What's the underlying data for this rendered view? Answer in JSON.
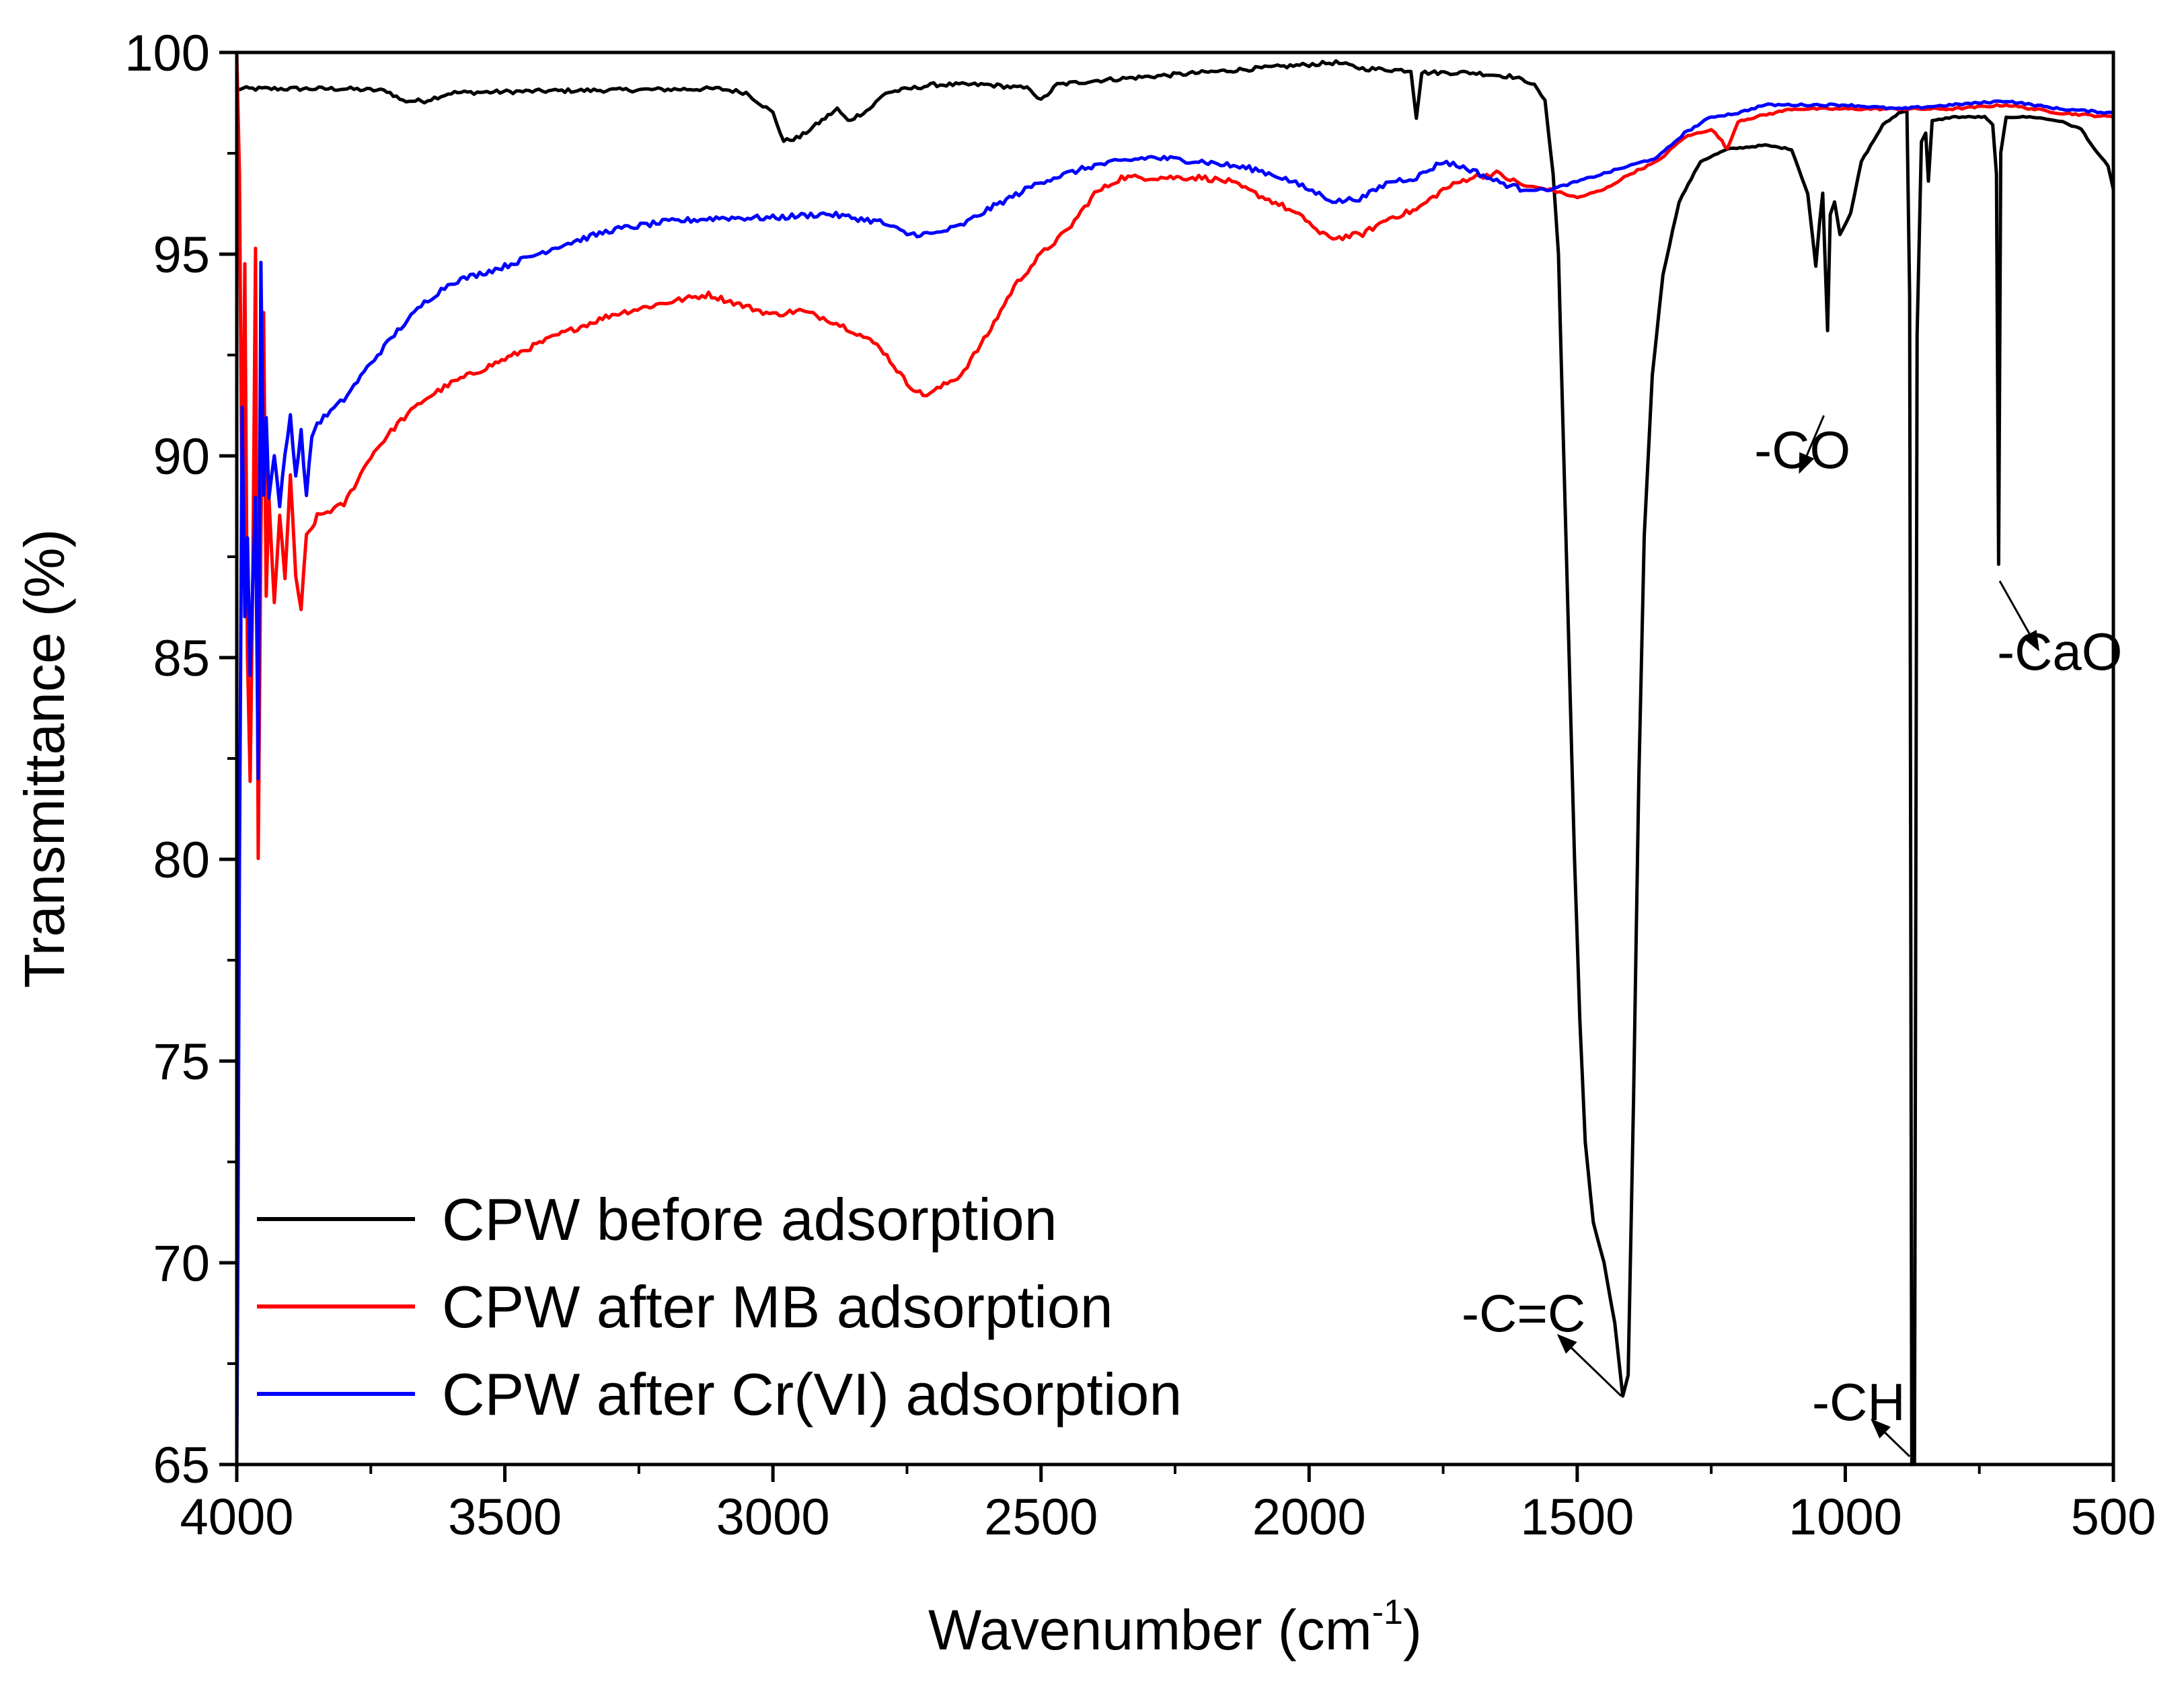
{
  "chart_data": {
    "type": "line",
    "title": "",
    "xlabel": "Wavenumber (cm",
    "xlabel_sup": "-1",
    "xlabel_suffix": ")",
    "ylabel": "Transmittance (%)",
    "xlim": [
      4000,
      500
    ],
    "ylim": [
      65,
      100
    ],
    "x_ticks": [
      4000,
      3500,
      3000,
      2500,
      2000,
      1500,
      1000,
      500
    ],
    "x_tick_labels": [
      "4000",
      "3500",
      "3000",
      "2500",
      "2000",
      "1500",
      "1000",
      "500"
    ],
    "y_ticks": [
      65,
      70,
      75,
      80,
      85,
      90,
      95,
      100
    ],
    "y_tick_labels": [
      "65",
      "70",
      "75",
      "80",
      "85",
      "90",
      "95",
      "100"
    ],
    "grid": false,
    "legend_position": "bottom-left",
    "series": [
      {
        "name": "CPW before adsorption",
        "color": "#000000",
        "points": [
          [
            4000,
            99.1
          ],
          [
            3900,
            99.1
          ],
          [
            3800,
            99.1
          ],
          [
            3720,
            99.05
          ],
          [
            3690,
            98.8
          ],
          [
            3650,
            98.8
          ],
          [
            3600,
            99.0
          ],
          [
            3400,
            99.05
          ],
          [
            3100,
            99.1
          ],
          [
            3050,
            99.0
          ],
          [
            3000,
            98.5
          ],
          [
            2980,
            97.8
          ],
          [
            2950,
            97.9
          ],
          [
            2920,
            98.2
          ],
          [
            2880,
            98.6
          ],
          [
            2860,
            98.3
          ],
          [
            2820,
            98.6
          ],
          [
            2790,
            99.0
          ],
          [
            2700,
            99.2
          ],
          [
            2600,
            99.2
          ],
          [
            2520,
            99.1
          ],
          [
            2500,
            98.8
          ],
          [
            2470,
            99.2
          ],
          [
            2400,
            99.3
          ],
          [
            2300,
            99.4
          ],
          [
            2200,
            99.5
          ],
          [
            2100,
            99.6
          ],
          [
            2000,
            99.7
          ],
          [
            1950,
            99.75
          ],
          [
            1900,
            99.6
          ],
          [
            1810,
            99.55
          ],
          [
            1800,
            98.4
          ],
          [
            1790,
            99.5
          ],
          [
            1700,
            99.5
          ],
          [
            1620,
            99.4
          ],
          [
            1580,
            99.2
          ],
          [
            1560,
            98.8
          ],
          [
            1545,
            97.0
          ],
          [
            1535,
            95.0
          ],
          [
            1525,
            90.0
          ],
          [
            1515,
            85.0
          ],
          [
            1505,
            80.0
          ],
          [
            1495,
            76.0
          ],
          [
            1485,
            73.0
          ],
          [
            1470,
            71.0
          ],
          [
            1450,
            70.0
          ],
          [
            1430,
            68.5
          ],
          [
            1415,
            66.7
          ],
          [
            1405,
            67.2
          ],
          [
            1395,
            74.0
          ],
          [
            1385,
            82.0
          ],
          [
            1375,
            88.0
          ],
          [
            1360,
            92.0
          ],
          [
            1340,
            94.5
          ],
          [
            1310,
            96.3
          ],
          [
            1270,
            97.3
          ],
          [
            1220,
            97.6
          ],
          [
            1150,
            97.7
          ],
          [
            1100,
            97.6
          ],
          [
            1070,
            96.5
          ],
          [
            1055,
            94.7
          ],
          [
            1048,
            95.8
          ],
          [
            1042,
            96.5
          ],
          [
            1038,
            95.0
          ],
          [
            1033,
            93.1
          ],
          [
            1028,
            96.0
          ],
          [
            1020,
            96.3
          ],
          [
            1010,
            95.5
          ],
          [
            990,
            96.0
          ],
          [
            970,
            97.3
          ],
          [
            930,
            98.2
          ],
          [
            900,
            98.5
          ],
          [
            885,
            98.55
          ],
          [
            880,
            94.0
          ],
          [
            876,
            65.0
          ],
          [
            871,
            65.0
          ],
          [
            866,
            93.0
          ],
          [
            858,
            97.8
          ],
          [
            850,
            98.0
          ],
          [
            845,
            96.8
          ],
          [
            838,
            98.3
          ],
          [
            800,
            98.4
          ],
          [
            740,
            98.4
          ],
          [
            725,
            98.2
          ],
          [
            718,
            97.0
          ],
          [
            714,
            87.3
          ],
          [
            710,
            97.5
          ],
          [
            700,
            98.4
          ],
          [
            650,
            98.4
          ],
          [
            600,
            98.3
          ],
          [
            560,
            98.1
          ],
          [
            530,
            97.5
          ],
          [
            510,
            97.2
          ],
          [
            500,
            96.6
          ]
        ]
      },
      {
        "name": "CPW after MB adsorption",
        "color": "#ff0000",
        "points": [
          [
            4000,
            100.0
          ],
          [
            3995,
            97.0
          ],
          [
            3990,
            88.0
          ],
          [
            3985,
            94.7
          ],
          [
            3980,
            85.0
          ],
          [
            3975,
            82.0
          ],
          [
            3970,
            87.0
          ],
          [
            3965,
            95.2
          ],
          [
            3960,
            80.0
          ],
          [
            3955,
            88.0
          ],
          [
            3950,
            93.5
          ],
          [
            3945,
            86.5
          ],
          [
            3940,
            89.0
          ],
          [
            3930,
            86.3
          ],
          [
            3920,
            88.5
          ],
          [
            3910,
            87.0
          ],
          [
            3900,
            89.5
          ],
          [
            3890,
            87.0
          ],
          [
            3880,
            86.2
          ],
          [
            3870,
            88.0
          ],
          [
            3860,
            88.2
          ],
          [
            3850,
            88.5
          ],
          [
            3800,
            88.8
          ],
          [
            3750,
            90.0
          ],
          [
            3700,
            90.8
          ],
          [
            3650,
            91.4
          ],
          [
            3600,
            91.8
          ],
          [
            3500,
            92.4
          ],
          [
            3400,
            93.0
          ],
          [
            3300,
            93.5
          ],
          [
            3200,
            93.8
          ],
          [
            3120,
            94.0
          ],
          [
            3050,
            93.7
          ],
          [
            3000,
            93.5
          ],
          [
            2950,
            93.6
          ],
          [
            2900,
            93.4
          ],
          [
            2850,
            93.1
          ],
          [
            2800,
            92.7
          ],
          [
            2750,
            91.8
          ],
          [
            2720,
            91.5
          ],
          [
            2700,
            91.6
          ],
          [
            2650,
            92.0
          ],
          [
            2600,
            93.0
          ],
          [
            2550,
            94.2
          ],
          [
            2500,
            95.0
          ],
          [
            2450,
            95.6
          ],
          [
            2400,
            96.5
          ],
          [
            2350,
            96.9
          ],
          [
            2300,
            96.9
          ],
          [
            2200,
            96.9
          ],
          [
            2150,
            96.8
          ],
          [
            2100,
            96.5
          ],
          [
            2050,
            96.2
          ],
          [
            2000,
            95.8
          ],
          [
            1980,
            95.5
          ],
          [
            1950,
            95.4
          ],
          [
            1900,
            95.5
          ],
          [
            1850,
            95.9
          ],
          [
            1800,
            96.1
          ],
          [
            1750,
            96.6
          ],
          [
            1700,
            96.9
          ],
          [
            1650,
            97.0
          ],
          [
            1600,
            96.7
          ],
          [
            1550,
            96.6
          ],
          [
            1500,
            96.4
          ],
          [
            1450,
            96.6
          ],
          [
            1400,
            97.0
          ],
          [
            1350,
            97.3
          ],
          [
            1300,
            97.9
          ],
          [
            1250,
            98.1
          ],
          [
            1230,
            97.8
          ],
          [
            1220,
            97.6
          ],
          [
            1200,
            98.3
          ],
          [
            1100,
            98.6
          ],
          [
            1000,
            98.6
          ],
          [
            900,
            98.6
          ],
          [
            800,
            98.6
          ],
          [
            700,
            98.7
          ],
          [
            600,
            98.5
          ],
          [
            500,
            98.4
          ]
        ]
      },
      {
        "name": "CPW after Cr(VI) adsorption",
        "color": "#0000ff",
        "points": [
          [
            4000,
            65.0
          ],
          [
            3998,
            70.0
          ],
          [
            3995,
            80.0
          ],
          [
            3990,
            91.2
          ],
          [
            3985,
            86.0
          ],
          [
            3980,
            88.0
          ],
          [
            3975,
            84.5
          ],
          [
            3970,
            87.0
          ],
          [
            3965,
            89.0
          ],
          [
            3960,
            82.0
          ],
          [
            3955,
            94.8
          ],
          [
            3950,
            89.0
          ],
          [
            3945,
            91.0
          ],
          [
            3940,
            89.0
          ],
          [
            3930,
            90.0
          ],
          [
            3920,
            88.8
          ],
          [
            3910,
            90.0
          ],
          [
            3900,
            91.0
          ],
          [
            3890,
            89.5
          ],
          [
            3880,
            90.6
          ],
          [
            3870,
            89.0
          ],
          [
            3860,
            90.5
          ],
          [
            3850,
            90.8
          ],
          [
            3800,
            91.4
          ],
          [
            3750,
            92.3
          ],
          [
            3700,
            93.1
          ],
          [
            3650,
            93.8
          ],
          [
            3600,
            94.3
          ],
          [
            3500,
            94.7
          ],
          [
            3400,
            95.2
          ],
          [
            3300,
            95.6
          ],
          [
            3200,
            95.8
          ],
          [
            3100,
            95.9
          ],
          [
            3000,
            95.9
          ],
          [
            2900,
            96.0
          ],
          [
            2800,
            95.8
          ],
          [
            2750,
            95.5
          ],
          [
            2700,
            95.5
          ],
          [
            2650,
            95.7
          ],
          [
            2600,
            96.1
          ],
          [
            2500,
            96.8
          ],
          [
            2400,
            97.2
          ],
          [
            2350,
            97.3
          ],
          [
            2300,
            97.4
          ],
          [
            2200,
            97.3
          ],
          [
            2100,
            97.1
          ],
          [
            2050,
            96.9
          ],
          [
            2000,
            96.6
          ],
          [
            1950,
            96.3
          ],
          [
            1900,
            96.4
          ],
          [
            1850,
            96.8
          ],
          [
            1800,
            96.9
          ],
          [
            1750,
            97.3
          ],
          [
            1700,
            97.1
          ],
          [
            1650,
            96.8
          ],
          [
            1600,
            96.6
          ],
          [
            1550,
            96.6
          ],
          [
            1500,
            96.8
          ],
          [
            1450,
            97.0
          ],
          [
            1400,
            97.2
          ],
          [
            1350,
            97.4
          ],
          [
            1300,
            98.0
          ],
          [
            1250,
            98.4
          ],
          [
            1200,
            98.5
          ],
          [
            1150,
            98.7
          ],
          [
            1100,
            98.7
          ],
          [
            1000,
            98.7
          ],
          [
            900,
            98.6
          ],
          [
            800,
            98.7
          ],
          [
            700,
            98.8
          ],
          [
            600,
            98.6
          ],
          [
            500,
            98.5
          ]
        ]
      }
    ],
    "annotations": [
      {
        "label": "-CO",
        "text_x": 1080,
        "text_y": 89.7,
        "arrow_from": [
          1040,
          91.0
        ],
        "arrow_to": [
          1085,
          89.6
        ],
        "anchor": "middle"
      },
      {
        "label": "-CaO",
        "text_x": 600,
        "text_y": 84.7,
        "arrow_from": [
          712,
          86.9
        ],
        "arrow_to": [
          640,
          85.2
        ],
        "anchor": "middle"
      },
      {
        "label": "-C=C",
        "text_x": 1600,
        "text_y": 68.3,
        "arrow_from": [
          1418,
          66.7
        ],
        "arrow_to": [
          1535,
          68.2
        ],
        "anchor": "middle"
      },
      {
        "label": "-CH",
        "text_x": 975,
        "text_y": 66.1,
        "arrow_from": [
          880,
          65.2
        ],
        "arrow_to": [
          950,
          66.1
        ],
        "anchor": "middle"
      }
    ]
  }
}
